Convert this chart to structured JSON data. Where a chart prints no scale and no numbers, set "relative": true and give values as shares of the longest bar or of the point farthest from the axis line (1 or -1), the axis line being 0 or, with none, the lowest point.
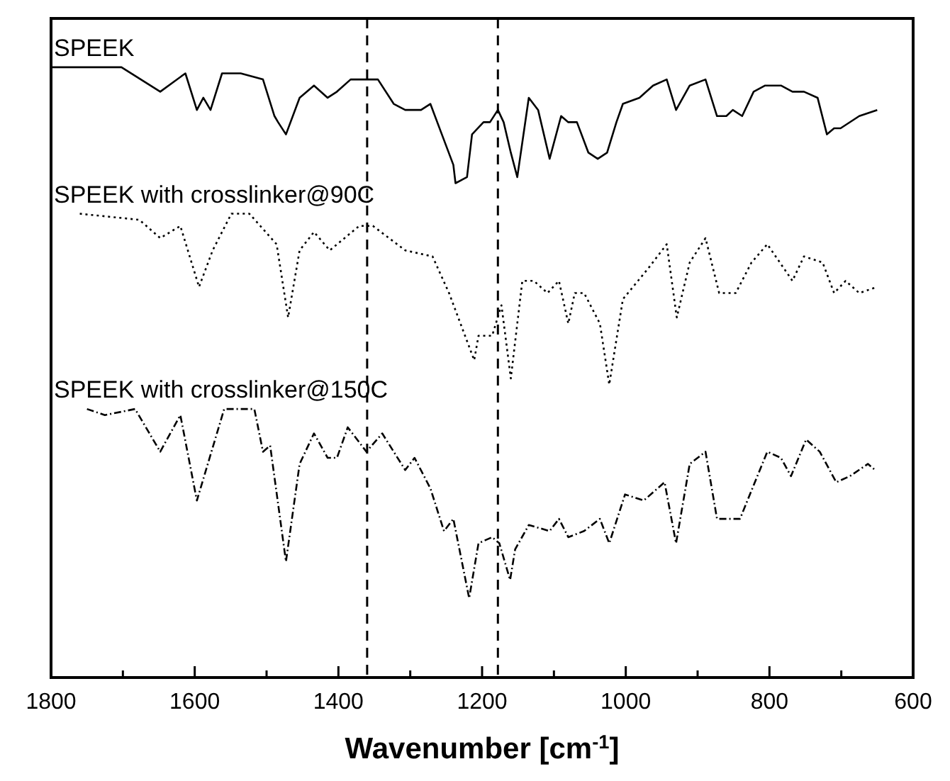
{
  "chart_data": {
    "type": "line",
    "relative": true,
    "xlabel": "Wavenumber [cm$^{-1}$]",
    "xlim": [
      1800,
      600
    ],
    "xticks": [
      1800,
      {
        "value": 1700,
        "label": null
      },
      1600,
      {
        "value": 1500,
        "label": null
      },
      1400,
      {
        "value": 1300,
        "label": null
      },
      1200,
      {
        "value": 1100,
        "label": null
      },
      1000,
      {
        "value": 900,
        "label": null
      },
      800,
      {
        "value": 700,
        "label": null
      },
      600
    ],
    "marker": "none",
    "ref_lines": [
      {
        "axis": "x",
        "value": 1360,
        "color": "#000000",
        "line_style": "dashed"
      },
      {
        "axis": "x",
        "value": 1178,
        "color": "#000000",
        "line_style": "dashed"
      }
    ],
    "series": [
      {
        "name": "SPEEK",
        "color": "#000000",
        "line_style": "solid",
        "x": [
          1798,
          1702,
          1648,
          1613,
          1597,
          1588,
          1578,
          1562,
          1536,
          1505,
          1489,
          1484,
          1473,
          1454,
          1434,
          1415,
          1402,
          1383,
          1345,
          1323,
          1307,
          1285,
          1272,
          1256,
          1240,
          1237,
          1221,
          1214,
          1198,
          1189,
          1178,
          1170,
          1160,
          1151,
          1135,
          1122,
          1106,
          1090,
          1080,
          1068,
          1052,
          1039,
          1026,
          1013,
          1004,
          981,
          962,
          943,
          930,
          911,
          889,
          873,
          860,
          851,
          838,
          822,
          806,
          784,
          768,
          752,
          733,
          720,
          710,
          701,
          675,
          650
        ],
        "values": [
          1.0,
          1.0,
          0.96,
          0.99,
          0.93,
          0.95,
          0.93,
          0.99,
          0.99,
          0.98,
          0.92,
          0.91,
          0.89,
          0.95,
          0.97,
          0.95,
          0.96,
          0.98,
          0.98,
          0.94,
          0.93,
          0.93,
          0.94,
          0.89,
          0.84,
          0.81,
          0.82,
          0.89,
          0.91,
          0.91,
          0.93,
          0.91,
          0.86,
          0.82,
          0.95,
          0.93,
          0.85,
          0.92,
          0.91,
          0.91,
          0.86,
          0.85,
          0.86,
          0.91,
          0.94,
          0.95,
          0.97,
          0.98,
          0.93,
          0.97,
          0.98,
          0.92,
          0.92,
          0.93,
          0.92,
          0.96,
          0.97,
          0.97,
          0.96,
          0.96,
          0.95,
          0.89,
          0.9,
          0.9,
          0.92,
          0.93
        ]
      },
      {
        "name": "SPEEK with crosslinker@90C",
        "color": "#000000",
        "line_style": "dotted",
        "x": [
          1760,
          1677,
          1648,
          1620,
          1594,
          1575,
          1549,
          1524,
          1486,
          1470,
          1454,
          1434,
          1412,
          1371,
          1352,
          1307,
          1269,
          1246,
          1211,
          1205,
          1186,
          1173,
          1160,
          1144,
          1128,
          1109,
          1093,
          1080,
          1071,
          1058,
          1036,
          1023,
          1004,
          969,
          943,
          929,
          911,
          889,
          870,
          847,
          825,
          803,
          768,
          752,
          726,
          710,
          694,
          675,
          650
        ],
        "values": [
          0.76,
          0.75,
          0.72,
          0.74,
          0.64,
          0.7,
          0.76,
          0.76,
          0.71,
          0.59,
          0.7,
          0.73,
          0.7,
          0.74,
          0.74,
          0.7,
          0.69,
          0.63,
          0.52,
          0.56,
          0.56,
          0.61,
          0.49,
          0.65,
          0.65,
          0.63,
          0.65,
          0.58,
          0.63,
          0.63,
          0.58,
          0.48,
          0.62,
          0.67,
          0.71,
          0.59,
          0.68,
          0.72,
          0.63,
          0.63,
          0.68,
          0.71,
          0.65,
          0.69,
          0.68,
          0.63,
          0.65,
          0.63,
          0.64
        ]
      },
      {
        "name": "SPEEK with crosslinker@150C",
        "color": "#000000",
        "line_style": "dashed",
        "x": [
          1750,
          1725,
          1683,
          1648,
          1620,
          1597,
          1559,
          1517,
          1505,
          1495,
          1473,
          1454,
          1434,
          1415,
          1402,
          1387,
          1361,
          1339,
          1307,
          1294,
          1272,
          1253,
          1240,
          1218,
          1205,
          1186,
          1176,
          1161,
          1154,
          1135,
          1106,
          1093,
          1080,
          1058,
          1036,
          1023,
          1001,
          975,
          946,
          930,
          911,
          889,
          873,
          841,
          803,
          784,
          770,
          749,
          730,
          707,
          688,
          663,
          653
        ],
        "values": [
          0.44,
          0.43,
          0.44,
          0.37,
          0.43,
          0.29,
          0.44,
          0.44,
          0.37,
          0.38,
          0.19,
          0.35,
          0.4,
          0.36,
          0.36,
          0.41,
          0.37,
          0.4,
          0.34,
          0.36,
          0.31,
          0.24,
          0.26,
          0.13,
          0.22,
          0.23,
          0.22,
          0.16,
          0.21,
          0.25,
          0.24,
          0.26,
          0.23,
          0.24,
          0.26,
          0.22,
          0.3,
          0.29,
          0.32,
          0.22,
          0.35,
          0.37,
          0.26,
          0.26,
          0.37,
          0.36,
          0.33,
          0.39,
          0.37,
          0.32,
          0.33,
          0.35,
          0.34
        ]
      }
    ]
  }
}
